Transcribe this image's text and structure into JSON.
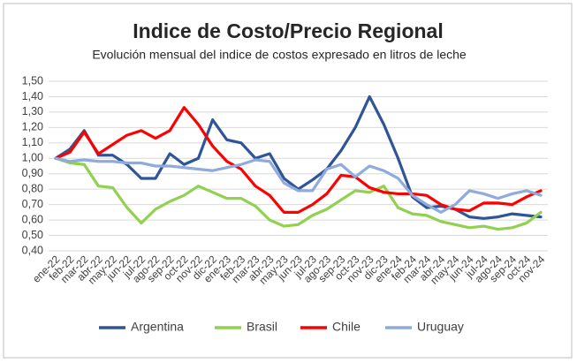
{
  "chart_data": {
    "type": "line",
    "title": "Indice de Costo/Precio Regional",
    "subtitle": "Evolución mensual del indice de costos expresado en litros de leche",
    "categories": [
      "ene-22",
      "feb-22",
      "mar-22",
      "abr-22",
      "may-22",
      "jun-22",
      "jul-22",
      "ago-22",
      "sep-22",
      "oct-22",
      "nov-22",
      "dic-22",
      "ene-23",
      "feb-23",
      "mar-23",
      "abr-23",
      "may-23",
      "jun-23",
      "jul-23",
      "ago-23",
      "sep-23",
      "oct-23",
      "nov-23",
      "dic-23",
      "ene-24",
      "feb-24",
      "mar-24",
      "abr-24",
      "may-24",
      "jun-24",
      "jul-24",
      "ago-24",
      "sep-24",
      "oct-24",
      "nov-24"
    ],
    "series": [
      {
        "name": "Argentina",
        "color": "#2f5597",
        "values": [
          1.0,
          1.06,
          1.18,
          1.02,
          1.02,
          0.96,
          0.87,
          0.87,
          1.03,
          0.96,
          1.0,
          1.25,
          1.12,
          1.1,
          1.0,
          1.03,
          0.87,
          0.8,
          0.86,
          0.93,
          1.05,
          1.2,
          1.4,
          1.22,
          1.0,
          0.75,
          0.68,
          0.69,
          0.67,
          0.62,
          0.61,
          0.62,
          0.64,
          0.63,
          0.62
        ]
      },
      {
        "name": "Brasil",
        "color": "#92d050",
        "values": [
          1.0,
          0.97,
          0.96,
          0.82,
          0.81,
          0.68,
          0.58,
          0.67,
          0.72,
          0.76,
          0.82,
          0.78,
          0.74,
          0.74,
          0.69,
          0.6,
          0.56,
          0.57,
          0.63,
          0.67,
          0.73,
          0.79,
          0.78,
          0.82,
          0.68,
          0.64,
          0.63,
          0.59,
          0.57,
          0.55,
          0.56,
          0.54,
          0.55,
          0.58,
          0.65
        ]
      },
      {
        "name": "Chile",
        "color": "#ff0000",
        "values": [
          1.0,
          1.04,
          1.17,
          1.03,
          1.09,
          1.15,
          1.18,
          1.13,
          1.18,
          1.33,
          1.22,
          1.08,
          0.98,
          0.93,
          0.82,
          0.76,
          0.65,
          0.65,
          0.7,
          0.77,
          0.89,
          0.88,
          0.81,
          0.78,
          0.77,
          0.77,
          0.76,
          0.7,
          0.67,
          0.66,
          0.71,
          0.71,
          0.7,
          0.75,
          0.79
        ]
      },
      {
        "name": "Uruguay",
        "color": "#8faadc",
        "values": [
          1.0,
          0.98,
          0.99,
          0.98,
          0.98,
          0.97,
          0.97,
          0.95,
          0.95,
          0.94,
          0.93,
          0.92,
          0.94,
          0.96,
          0.99,
          0.98,
          0.84,
          0.79,
          0.79,
          0.93,
          0.96,
          0.88,
          0.95,
          0.92,
          0.87,
          0.76,
          0.7,
          0.65,
          0.7,
          0.79,
          0.77,
          0.74,
          0.77,
          0.79,
          0.76
        ]
      }
    ],
    "ylim": [
      0.4,
      1.5
    ],
    "yticks": [
      {
        "value": 0.4,
        "label": "0,40"
      },
      {
        "value": 0.5,
        "label": "0,50"
      },
      {
        "value": 0.6,
        "label": "0,60"
      },
      {
        "value": 0.7,
        "label": "0,70"
      },
      {
        "value": 0.8,
        "label": "0,80"
      },
      {
        "value": 0.9,
        "label": "0,90"
      },
      {
        "value": 1.0,
        "label": "1,00"
      },
      {
        "value": 1.1,
        "label": "1,10"
      },
      {
        "value": 1.2,
        "label": "1,20"
      },
      {
        "value": 1.3,
        "label": "1,30"
      },
      {
        "value": 1.4,
        "label": "1,40"
      },
      {
        "value": 1.5,
        "label": "1,50"
      }
    ],
    "grid": true,
    "legend": "bottom"
  }
}
